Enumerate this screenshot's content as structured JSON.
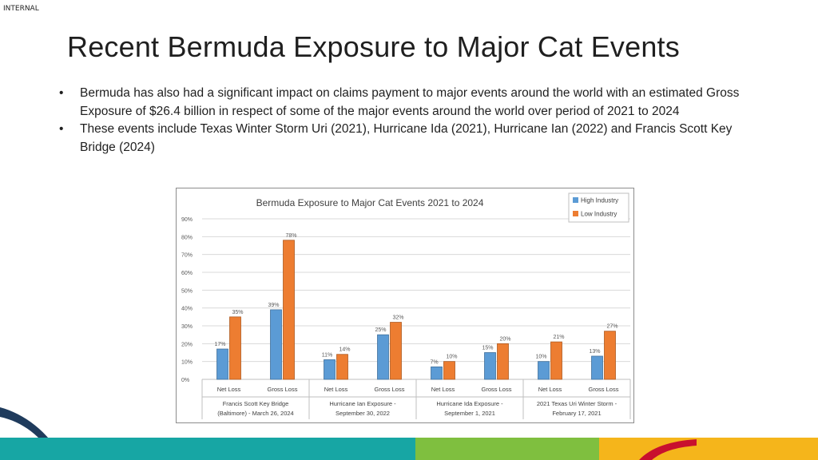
{
  "classification": "INTERNAL",
  "slide": {
    "title": "Recent Bermuda Exposure to Major Cat Events",
    "bullets": [
      "Bermuda has also had a significant impact on claims payment to major events around the world with an estimated Gross Exposure of $26.4 billion in respect of some of the major events around the world over period of 2021 to 2024",
      "These events include Texas Winter Storm Uri (2021), Hurricane Ida (2021), Hurricane Ian (2022) and Francis Scott Key Bridge (2024)"
    ]
  },
  "colors": {
    "high_industry": "#5b9bd5",
    "low_industry": "#ed7d31",
    "stripe_teal": "#17a6a4",
    "stripe_green": "#7fbf3f",
    "stripe_yellow": "#f5b51b",
    "swoosh_navy": "#1f3b5c",
    "swoosh_red": "#c8102e"
  },
  "chart_data": {
    "type": "bar",
    "title": "Bermuda Exposure to Major Cat Events 2021 to 2024",
    "ylim": [
      0,
      90
    ],
    "yticks": [
      "0%",
      "10%",
      "20%",
      "30%",
      "40%",
      "50%",
      "60%",
      "70%",
      "80%",
      "90%"
    ],
    "grid": true,
    "legend_position": "top-right",
    "groups": [
      {
        "label": "Francis Scott Key Bridge (Baltimore) - March 26, 2024",
        "label_lines": [
          "Francis Scott Key Bridge",
          "(Baltimore) - March 26, 2024"
        ]
      },
      {
        "label": "Hurricane Ian Exposure - September 30, 2022",
        "label_lines": [
          "Hurricane Ian Exposure -",
          "September 30, 2022"
        ]
      },
      {
        "label": "Hurricane Ida Exposure - September 1, 2021",
        "label_lines": [
          "Hurricane Ida Exposure -",
          "September 1, 2021"
        ]
      },
      {
        "label": "2021 Texas Uri Winter Storm - February 17, 2021",
        "label_lines": [
          "2021 Texas Uri Winter Storm -",
          "February 17, 2021"
        ]
      }
    ],
    "categories": [
      "Net Loss",
      "Gross Loss",
      "Net Loss",
      "Gross Loss",
      "Net Loss",
      "Gross Loss",
      "Net Loss",
      "Gross Loss"
    ],
    "series": [
      {
        "name": "High Industry",
        "values": [
          17,
          39,
          11,
          25,
          7,
          15,
          10,
          13
        ],
        "labels": [
          "17%",
          "39%",
          "11%",
          "25%",
          "7%",
          "15%",
          "10%",
          "13%"
        ]
      },
      {
        "name": "Low Industry",
        "values": [
          35,
          78,
          14,
          32,
          10,
          20,
          21,
          27
        ],
        "labels": [
          "35%",
          "78%",
          "14%",
          "32%",
          "10%",
          "20%",
          "21%",
          "27%"
        ]
      }
    ]
  }
}
